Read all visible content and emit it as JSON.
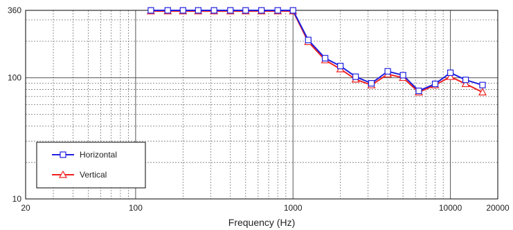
{
  "chart_data": {
    "type": "line",
    "title": "",
    "xlabel": "Frequency (Hz)",
    "ylabel": "",
    "x_scale": "log",
    "y_scale": "log",
    "xlim": [
      20,
      20000
    ],
    "ylim": [
      10,
      360
    ],
    "x_ticks": [
      "20",
      "100",
      "1000",
      "10000",
      "20000"
    ],
    "y_ticks": [
      "10",
      "100",
      "360"
    ],
    "grid": true,
    "legend_position": "bottom-left",
    "x": [
      125,
      160,
      200,
      250,
      315,
      400,
      500,
      630,
      800,
      1000,
      1250,
      1600,
      2000,
      2500,
      3150,
      4000,
      5000,
      6300,
      8000,
      10000,
      12500,
      16000
    ],
    "series": [
      {
        "name": "Horizontal",
        "color": "#1f1fe0",
        "marker": "square",
        "values": [
          360,
          360,
          360,
          360,
          360,
          360,
          360,
          360,
          360,
          360,
          205,
          145,
          125,
          102,
          90,
          113,
          105,
          78,
          89,
          110,
          96,
          87
        ]
      },
      {
        "name": "Vertical",
        "color": "#f02020",
        "marker": "triangle",
        "values": [
          355,
          355,
          355,
          355,
          355,
          355,
          355,
          355,
          355,
          355,
          198,
          140,
          118,
          97,
          87,
          107,
          100,
          76,
          87,
          102,
          89,
          76
        ]
      }
    ]
  }
}
